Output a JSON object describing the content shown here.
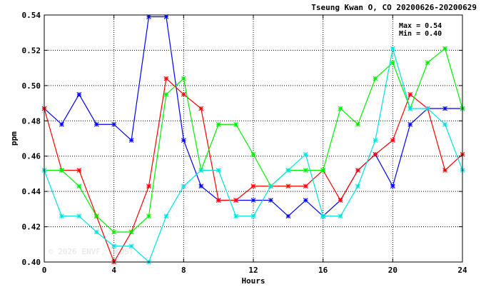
{
  "chart_data": {
    "type": "line",
    "title": "Tseung Kwan O, CO 20200626-20200629",
    "xlabel": "Hours",
    "ylabel": "ppm",
    "xlim": [
      0,
      24
    ],
    "ylim": [
      0.4,
      0.54
    ],
    "xticks": [
      0,
      4,
      8,
      12,
      16,
      20,
      24
    ],
    "yticks": [
      0.4,
      0.42,
      0.44,
      0.46,
      0.48,
      0.5,
      0.52,
      0.54
    ],
    "grid": true,
    "annotations": [
      "Max = 0.54",
      "Min = 0.40"
    ],
    "watermark": "© 2026 ENVF, HKUST",
    "x": [
      0,
      1,
      2,
      3,
      4,
      5,
      6,
      7,
      8,
      9,
      10,
      11,
      12,
      13,
      14,
      15,
      16,
      17,
      18,
      19,
      20,
      21,
      22,
      23,
      24
    ],
    "series": [
      {
        "color": "#0000ff",
        "values": [
          0.487,
          0.478,
          0.495,
          0.478,
          0.478,
          0.469,
          0.539,
          0.539,
          0.469,
          0.443,
          0.435,
          0.435,
          0.435,
          0.435,
          0.426,
          0.435,
          0.426,
          0.435,
          0.452,
          0.461,
          0.443,
          0.478,
          0.487,
          0.487,
          0.487
        ]
      },
      {
        "color": "#ff0000",
        "values": [
          0.487,
          0.452,
          0.452,
          0.426,
          0.4,
          0.417,
          0.443,
          0.504,
          0.495,
          0.487,
          0.435,
          0.435,
          0.443,
          0.443,
          0.443,
          0.443,
          0.452,
          0.435,
          0.452,
          0.461,
          0.469,
          0.495,
          0.487,
          0.452,
          0.461
        ]
      },
      {
        "color": "#00ee00",
        "values": [
          0.452,
          0.452,
          0.443,
          0.426,
          0.417,
          0.417,
          0.426,
          0.495,
          0.504,
          0.452,
          0.478,
          0.478,
          0.461,
          0.443,
          0.452,
          0.452,
          0.452,
          0.487,
          0.478,
          0.504,
          0.513,
          0.487,
          0.513,
          0.521,
          0.487
        ]
      },
      {
        "color": "#00e0e0",
        "values": [
          0.452,
          0.426,
          0.426,
          0.417,
          0.409,
          0.409,
          0.4,
          0.426,
          0.443,
          0.452,
          0.452,
          0.426,
          0.426,
          0.443,
          0.452,
          0.461,
          0.426,
          0.426,
          0.443,
          0.469,
          0.521,
          0.487,
          0.487,
          0.478,
          0.452
        ]
      }
    ]
  }
}
